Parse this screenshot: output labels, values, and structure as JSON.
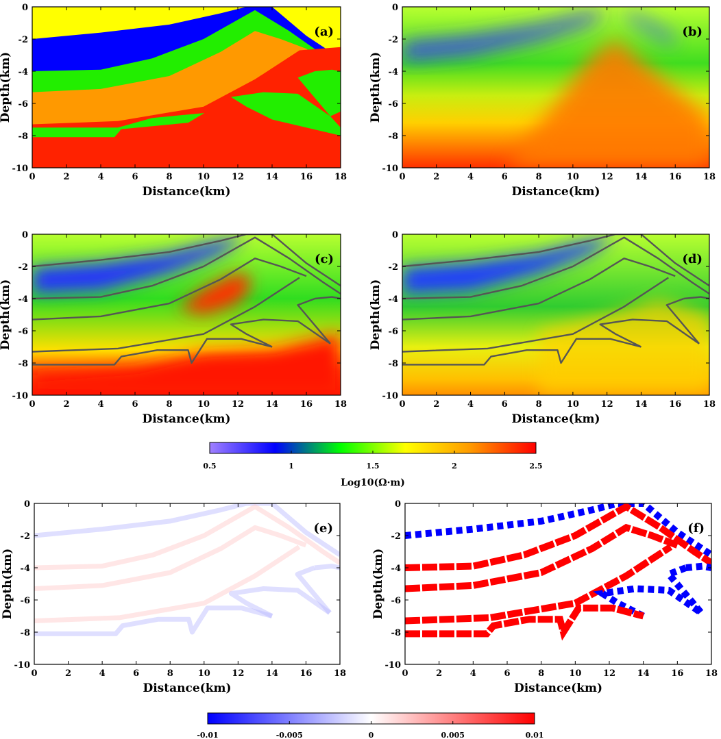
{
  "colors": {
    "yellow": "#ffff00",
    "blue": "#0000ff",
    "green": "#22ee00",
    "orange": "#ff9900",
    "red": "#ff2200",
    "boundary": "#555555",
    "positive": "#ff0000",
    "negative": "#0000ff"
  },
  "chart_data": [
    {
      "id": "a",
      "type": "heatmap",
      "panel_label": "(a)",
      "title": "",
      "xlabel": "Distance(km)",
      "ylabel": "Depth(km)",
      "xlim": [
        0,
        18
      ],
      "ylim": [
        -10,
        0
      ],
      "xticks": [
        "0",
        "2",
        "4",
        "6",
        "8",
        "10",
        "12",
        "14",
        "16",
        "18"
      ],
      "yticks": [
        "0",
        "-2",
        "-4",
        "-6",
        "-8",
        "-10"
      ],
      "description_values": "blocky true resistivity model (layers)"
    },
    {
      "id": "b",
      "type": "heatmap",
      "panel_label": "(b)",
      "xlabel": "Distance(km)",
      "ylabel": "Depth(km)",
      "xlim": [
        0,
        18
      ],
      "ylim": [
        -10,
        0
      ],
      "xticks": [
        "0",
        "2",
        "4",
        "6",
        "8",
        "10",
        "12",
        "14",
        "16",
        "18"
      ],
      "yticks": [
        "0",
        "-2",
        "-4",
        "-6",
        "-8",
        "-10"
      ]
    },
    {
      "id": "c",
      "type": "heatmap",
      "panel_label": "(c)",
      "xlabel": "Distance(km)",
      "ylabel": "Depth(km)",
      "xlim": [
        0,
        18
      ],
      "ylim": [
        -10,
        0
      ],
      "xticks": [
        "0",
        "2",
        "4",
        "6",
        "8",
        "10",
        "12",
        "14",
        "16",
        "18"
      ],
      "yticks": [
        "0",
        "-2",
        "-4",
        "-6",
        "-8",
        "-10"
      ]
    },
    {
      "id": "d",
      "type": "heatmap",
      "panel_label": "(d)",
      "xlabel": "Distance(km)",
      "ylabel": "Depth(km)",
      "xlim": [
        0,
        18
      ],
      "ylim": [
        -10,
        0
      ],
      "xticks": [
        "0",
        "2",
        "4",
        "6",
        "8",
        "10",
        "12",
        "14",
        "16",
        "18"
      ],
      "yticks": [
        "0",
        "-2",
        "-4",
        "-6",
        "-8",
        "-10"
      ]
    },
    {
      "id": "e",
      "type": "heatmap",
      "panel_label": "(e)",
      "xlabel": "Distance(km)",
      "ylabel": "Depth(km)",
      "xlim": [
        0,
        18
      ],
      "ylim": [
        -10,
        0
      ],
      "xticks": [
        "0",
        "2",
        "4",
        "6",
        "8",
        "10",
        "12",
        "14",
        "16",
        "18"
      ],
      "yticks": [
        "0",
        "-2",
        "-4",
        "-6",
        "-8",
        "-10"
      ]
    },
    {
      "id": "f",
      "type": "heatmap",
      "panel_label": "(f)",
      "xlabel": "Distance(km)",
      "ylabel": "Depth(km)",
      "xlim": [
        0,
        18
      ],
      "ylim": [
        -10,
        0
      ],
      "xticks": [
        "0",
        "2",
        "4",
        "6",
        "8",
        "10",
        "12",
        "14",
        "16",
        "18"
      ],
      "yticks": [
        "0",
        "-2",
        "-4",
        "-6",
        "-8",
        "-10"
      ]
    }
  ],
  "colorbars": [
    {
      "id": "resistivity",
      "title": "Log10(Ω·m)",
      "range": [
        0.5,
        2.5
      ],
      "ticks": [
        "0.5",
        "1",
        "1.5",
        "2",
        "2.5"
      ],
      "tick_values": [
        0.5,
        1,
        1.5,
        2,
        2.5
      ],
      "stops": [
        "#a080ff",
        "#0000ff",
        "#00ff00",
        "#ffff00",
        "#ff9900",
        "#ff0000"
      ]
    },
    {
      "id": "difference",
      "title": "",
      "range": [
        -0.01,
        0.01
      ],
      "ticks": [
        "-0.01",
        "-0.005",
        "0",
        "0.005",
        "0.01"
      ],
      "tick_values": [
        -0.01,
        -0.005,
        0,
        0.005,
        0.01
      ],
      "stops": [
        "#0000ff",
        "#ffffff",
        "#ff0000"
      ]
    }
  ],
  "boundaries": [
    [
      [
        0,
        -2
      ],
      [
        4,
        -1.6
      ],
      [
        8,
        -1.1
      ],
      [
        11,
        -0.4
      ],
      [
        12.5,
        0
      ],
      [
        14,
        0
      ],
      [
        16,
        -1.8
      ],
      [
        18,
        -3.2
      ]
    ],
    [
      [
        0,
        -4
      ],
      [
        4,
        -3.9
      ],
      [
        7,
        -3.2
      ],
      [
        10,
        -2.0
      ],
      [
        13,
        -0.2
      ],
      [
        15,
        -1.5
      ],
      [
        17,
        -3
      ],
      [
        18,
        -3.7
      ]
    ],
    [
      [
        0,
        -5.3
      ],
      [
        4,
        -5.1
      ],
      [
        8,
        -4.3
      ],
      [
        11,
        -2.8
      ],
      [
        13,
        -1.5
      ],
      [
        14.5,
        -2.0
      ],
      [
        16,
        -2.6
      ]
    ],
    [
      [
        0,
        -7.3
      ],
      [
        5,
        -7.1
      ],
      [
        10,
        -6.2
      ],
      [
        13,
        -4.5
      ],
      [
        15.6,
        -2.7
      ]
    ],
    [
      [
        16.5,
        -4.0
      ],
      [
        17.5,
        -3.9
      ],
      [
        18,
        -4.0
      ]
    ],
    [
      [
        16.5,
        -4.0
      ],
      [
        15.5,
        -4.4
      ],
      [
        17.4,
        -6.8
      ]
    ],
    [
      [
        14,
        -7.0
      ],
      [
        12.5,
        -6.2
      ],
      [
        11.6,
        -5.6
      ],
      [
        13.5,
        -5.3
      ],
      [
        15.5,
        -5.4
      ],
      [
        17.4,
        -6.8
      ]
    ],
    [
      [
        0,
        -8.1
      ],
      [
        4.8,
        -8.1
      ],
      [
        5.2,
        -7.6
      ],
      [
        7.3,
        -7.2
      ],
      [
        9.1,
        -7.2
      ],
      [
        9.3,
        -8.0
      ],
      [
        10.2,
        -6.5
      ],
      [
        12.2,
        -6.5
      ],
      [
        14,
        -7.0
      ]
    ]
  ]
}
